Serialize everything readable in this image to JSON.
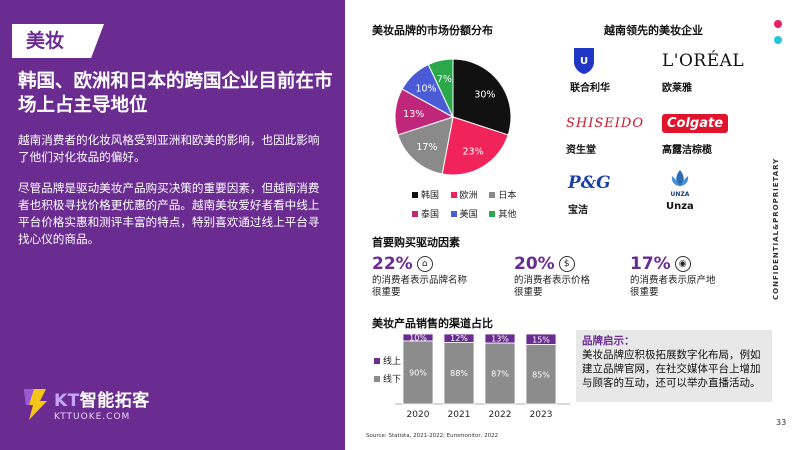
{
  "left_panel": {
    "tag": "美妆",
    "heading": "韩国、欧洲和日本的跨国企业目前在市场上占主导地位",
    "paragraph1": "越南消费者的化妆风格受到亚洲和欧美的影响，也因此影响了他们对化妆品的偏好。",
    "paragraph2": "尽管品牌是驱动美妆产品购买决策的重要因素，但越南消费者也积极寻找价格更优惠的产品。越南美妆爱好者看中线上平台价格实惠和测评丰富的特点，特别喜欢通过线上平台寻找心仪的商品。",
    "logo_text_kt": "KT",
    "logo_text_cn": "智能拓客",
    "logo_sub": "KTTUOKE.COM"
  },
  "market_share": {
    "title": "美妆品牌的市场份额分布"
  },
  "leaders": {
    "title": "越南领先的美妆企业",
    "brands": [
      {
        "name": "联合利华",
        "logo_text": "Unilever",
        "logo_icon": "unilever-logo-icon"
      },
      {
        "name": "欧莱雅",
        "logo_text": "L'ORÉAL"
      },
      {
        "name": "资生堂",
        "logo_text": "SHISEIDO"
      },
      {
        "name": "高露洁棕榄",
        "logo_text": "Colgate"
      },
      {
        "name": "宝洁",
        "logo_text": "P&G"
      },
      {
        "name": "Unza",
        "logo_text": "UNZA",
        "logo_icon": "unza-logo-icon"
      }
    ]
  },
  "drivers": {
    "title": "首要购买驱动因素",
    "items": [
      {
        "value": "22%",
        "text_line1": "的消费者表示品牌名称",
        "text_line2": "很重要",
        "icon": "tag-icon"
      },
      {
        "value": "20%",
        "text_line1": "的消费者表示价格",
        "text_line2": "很重要",
        "icon": "price-icon"
      },
      {
        "value": "17%",
        "text_line1": "的消费者表示原产地",
        "text_line2": "很重要",
        "icon": "location-icon"
      }
    ]
  },
  "channels": {
    "title": "美妆产品销售的渠道占比",
    "legend_online": "线上",
    "legend_offline": "线下"
  },
  "insight": {
    "title": "品牌启示：",
    "body": "美妆品牌应积极拓展数字化布局，例如建立品牌官网，在社交媒体平台上增加与顾客的互动，还可以举办直播活动。"
  },
  "footer": {
    "source": "Source: Statista, 2021-2022; Euromonitor, 2022",
    "page": "33",
    "confidential": "CONFIDENTIAL&PROPRIETARY"
  },
  "colors": {
    "purple": "#6a2c91",
    "pink": "#e91e63",
    "teal": "#26c6da"
  },
  "chart_data": [
    {
      "type": "pie",
      "title": "美妆品牌的市场份额分布",
      "categories": [
        "韩国",
        "欧洲",
        "日本",
        "泰国",
        "美国",
        "其他"
      ],
      "values": [
        30,
        23,
        17,
        13,
        10,
        7
      ],
      "labels": [
        "30%",
        "23%",
        "17%",
        "13%",
        "10%",
        "7%"
      ],
      "colors": [
        "#111111",
        "#f0245a",
        "#8a8a8a",
        "#c0267a",
        "#4a5bd6",
        "#2aa84a"
      ],
      "legend": "bottom"
    },
    {
      "type": "bar",
      "stacked": true,
      "title": "美妆产品销售的渠道占比",
      "categories": [
        "2020",
        "2021",
        "2022",
        "2023"
      ],
      "series": [
        {
          "name": "线上",
          "values": [
            10,
            12,
            13,
            15
          ],
          "labels": [
            "10%",
            "12%",
            "13%",
            "15%"
          ],
          "color": "#6a2c91"
        },
        {
          "name": "线下",
          "values": [
            90,
            88,
            87,
            85
          ],
          "labels": [
            "90%",
            "88%",
            "87%",
            "85%"
          ],
          "color": "#8c8c8c"
        }
      ],
      "ylim": [
        0,
        100
      ],
      "legend": "left"
    }
  ]
}
